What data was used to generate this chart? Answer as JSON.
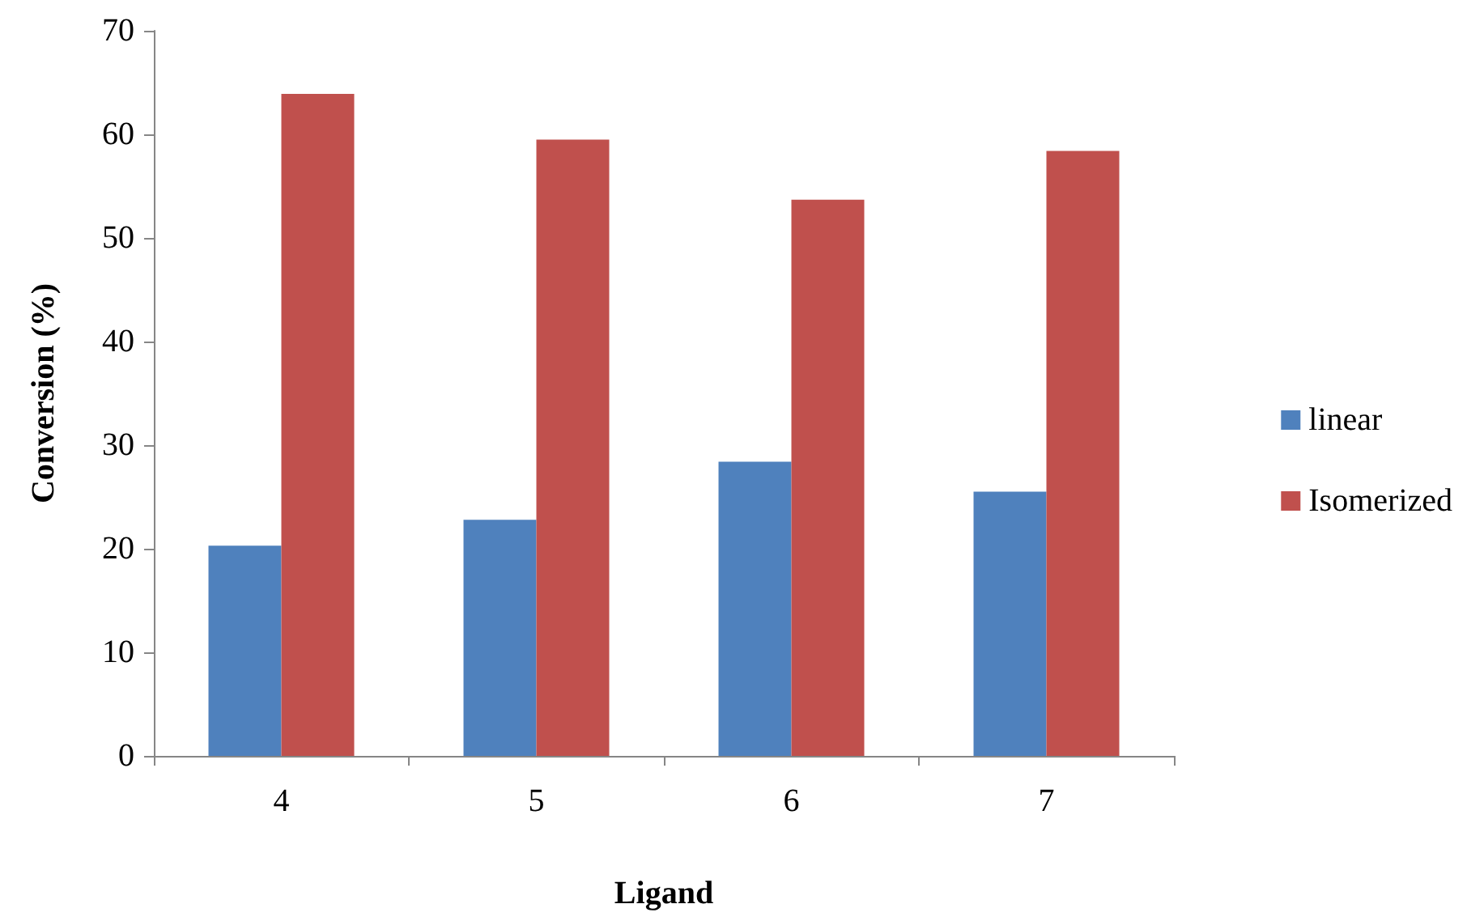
{
  "chart_data": {
    "type": "bar",
    "xlabel": "Ligand",
    "ylabel": "Conversion (%)",
    "categories": [
      "4",
      "5",
      "6",
      "7"
    ],
    "series": [
      {
        "name": "linear",
        "color": "#4f81bd",
        "values": [
          20.3,
          22.8,
          28.4,
          25.5
        ]
      },
      {
        "name": "Isomerized",
        "color": "#c0504d",
        "values": [
          63.9,
          59.5,
          53.7,
          58.4
        ]
      }
    ],
    "ylim": [
      0,
      70
    ],
    "yticks": [
      0,
      10,
      20,
      30,
      40,
      50,
      60,
      70
    ],
    "grid": false,
    "legend": "right"
  }
}
